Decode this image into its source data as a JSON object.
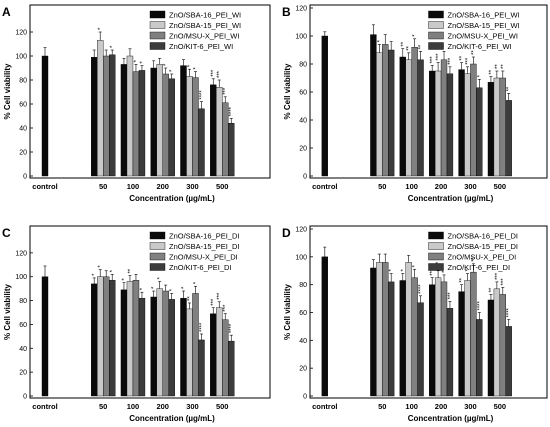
{
  "figure": {
    "shared": {
      "ylabel": "% Cell viability",
      "xlabel": "Concentration (µg/mL)",
      "yticks": [
        0,
        20,
        40,
        60,
        80,
        100,
        120
      ],
      "colors": [
        "#0a0a0a",
        "#c9c9c9",
        "#808080",
        "#3c3c3c"
      ]
    }
  },
  "chart_data": [
    {
      "panel": "A",
      "type": "bar",
      "ylim": [
        0,
        140
      ],
      "categories": [
        "control",
        "50",
        "100",
        "200",
        "300",
        "500"
      ],
      "series": [
        {
          "name": "ZnO/SBA-16_PEI_WI",
          "values": [
            100,
            99,
            93,
            90,
            92,
            76
          ],
          "errors": [
            7,
            6,
            5,
            6,
            5,
            5
          ],
          "stars": [
            "",
            "",
            "",
            "",
            "",
            "***"
          ]
        },
        {
          "name": "ZnO/SBA-15_PEI_WI",
          "values": [
            null,
            113,
            100,
            93,
            83,
            74
          ],
          "errors": [
            null,
            7,
            6,
            5,
            6,
            6
          ],
          "stars": [
            "",
            "*",
            "",
            "",
            "*",
            "***"
          ]
        },
        {
          "name": "ZnO/MSU-X_PEI_WI",
          "values": [
            null,
            100,
            87,
            85,
            82,
            61
          ],
          "errors": [
            null,
            5,
            6,
            5,
            5,
            5
          ],
          "stars": [
            "",
            "",
            "*",
            "*",
            "*",
            "***"
          ]
        },
        {
          "name": "ZnO/KIT-6_PEI_WI",
          "values": [
            null,
            101,
            88,
            81,
            56,
            44
          ],
          "errors": [
            null,
            4,
            4,
            4,
            6,
            4
          ],
          "stars": [
            "",
            "*",
            "*",
            "*",
            "****",
            "****"
          ]
        }
      ]
    },
    {
      "panel": "B",
      "type": "bar",
      "ylim": [
        0,
        120
      ],
      "categories": [
        "control",
        "50",
        "100",
        "200",
        "300",
        "500"
      ],
      "series": [
        {
          "name": "ZnO/SBA-16_PEI_WI",
          "values": [
            100,
            101,
            85,
            75,
            76,
            67
          ],
          "errors": [
            3,
            7,
            6,
            4,
            5,
            4
          ],
          "stars": [
            "",
            "",
            "**",
            "***",
            "**",
            "**"
          ]
        },
        {
          "name": "ZnO/SBA-15_PEI_WI",
          "values": [
            null,
            88,
            83,
            75,
            73,
            70
          ],
          "errors": [
            null,
            6,
            5,
            6,
            5,
            5
          ],
          "stars": [
            "",
            "*",
            "**",
            "***",
            "***",
            "**"
          ]
        },
        {
          "name": "ZnO/MSU-X_PEI_WI",
          "values": [
            null,
            94,
            92,
            83,
            80,
            70
          ],
          "errors": [
            null,
            7,
            6,
            6,
            5,
            5
          ],
          "stars": [
            "",
            "",
            "*",
            "***",
            "**",
            "**"
          ]
        },
        {
          "name": "ZnO/KIT-6_PEI_WI",
          "values": [
            null,
            90,
            83,
            73,
            63,
            54
          ],
          "errors": [
            null,
            6,
            6,
            5,
            6,
            5
          ],
          "stars": [
            "",
            "",
            "**",
            "***",
            "*",
            "**"
          ]
        }
      ]
    },
    {
      "panel": "C",
      "type": "bar",
      "ylim": [
        0,
        140
      ],
      "categories": [
        "control",
        "50",
        "100",
        "200",
        "300",
        "500"
      ],
      "series": [
        {
          "name": "ZnO/SBA-16_PEI_DI",
          "values": [
            100,
            94,
            89,
            83,
            82,
            69
          ],
          "errors": [
            9,
            5,
            6,
            5,
            6,
            5
          ],
          "stars": [
            "",
            "*",
            "*",
            "*",
            "*",
            "***"
          ]
        },
        {
          "name": "ZnO/SBA-15_PEI_DI",
          "values": [
            null,
            100,
            96,
            90,
            73,
            74
          ],
          "errors": [
            null,
            6,
            5,
            6,
            5,
            5
          ],
          "stars": [
            "",
            "*",
            "**",
            "*",
            "**",
            "***"
          ]
        },
        {
          "name": "ZnO/MSU-X_PEI_DI",
          "values": [
            null,
            100,
            97,
            88,
            86,
            64
          ],
          "errors": [
            null,
            5,
            5,
            5,
            6,
            5
          ],
          "stars": [
            "",
            "",
            "",
            "",
            "*",
            "***"
          ]
        },
        {
          "name": "ZnO/KIT-6_PEI_DI",
          "values": [
            null,
            97,
            82,
            81,
            47,
            46
          ],
          "errors": [
            null,
            5,
            5,
            5,
            5,
            5
          ],
          "stars": [
            "",
            "*",
            "*",
            "*",
            "****",
            "****"
          ]
        }
      ]
    },
    {
      "panel": "D",
      "type": "bar",
      "ylim": [
        0,
        120
      ],
      "categories": [
        "control",
        "50",
        "100",
        "200",
        "300",
        "500"
      ],
      "series": [
        {
          "name": "ZnO/SBA-16_PEI_DI",
          "values": [
            100,
            92,
            83,
            80,
            75,
            69
          ],
          "errors": [
            7,
            6,
            5,
            5,
            5,
            4
          ],
          "stars": [
            "",
            "",
            "*",
            "***",
            "**",
            "**"
          ]
        },
        {
          "name": "ZnO/SBA-15_PEI_DI",
          "values": [
            null,
            96,
            96,
            85,
            83,
            77
          ],
          "errors": [
            null,
            6,
            5,
            5,
            5,
            5
          ],
          "stars": [
            "",
            "",
            "",
            "***",
            "*",
            "***"
          ]
        },
        {
          "name": "ZnO/MSU-X_PEI_DI",
          "values": [
            null,
            96,
            85,
            82,
            89,
            73
          ],
          "errors": [
            null,
            6,
            6,
            5,
            6,
            5
          ],
          "stars": [
            "",
            "",
            "*",
            "**",
            "**",
            "***"
          ]
        },
        {
          "name": "ZnO/KIT-6_PEI_DI",
          "values": [
            null,
            82,
            67,
            63,
            55,
            50
          ],
          "errors": [
            null,
            6,
            5,
            5,
            5,
            5
          ],
          "stars": [
            "",
            "*",
            "****",
            "***",
            "****",
            "****"
          ]
        }
      ]
    }
  ]
}
